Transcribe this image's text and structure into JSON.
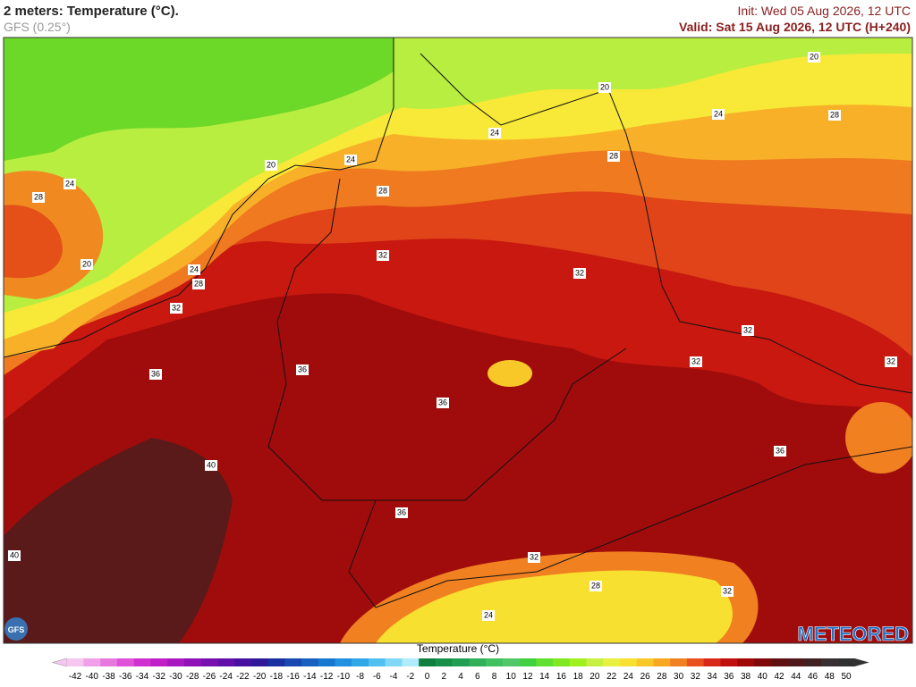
{
  "header": {
    "title": "2 meters: Temperature (°C).",
    "model": "GFS (0.25°)",
    "init": "Init: Wed 05 Aug 2026, 12 UTC",
    "valid": "Valid: Sat 15 Aug 2026, 12 UTC (H+240)"
  },
  "map": {
    "contour_labels": [
      20,
      20,
      20,
      20,
      24,
      24,
      24,
      24,
      24,
      24,
      28,
      28,
      28,
      28,
      28,
      28,
      32,
      32,
      32,
      32,
      32,
      32,
      32,
      32,
      36,
      36,
      36,
      36,
      36,
      40,
      40
    ]
  },
  "logos": {
    "model": "GFS",
    "brand": "METEORED"
  },
  "colorbar": {
    "title": "Temperature (°C)",
    "ticks": [
      -42,
      -40,
      -38,
      -36,
      -34,
      -32,
      -30,
      -28,
      -26,
      -24,
      -22,
      -20,
      -18,
      -16,
      -14,
      -12,
      -10,
      -8,
      -6,
      -4,
      -2,
      0,
      2,
      4,
      6,
      8,
      10,
      12,
      14,
      16,
      18,
      20,
      22,
      24,
      26,
      28,
      30,
      32,
      34,
      36,
      38,
      40,
      42,
      44,
      46,
      48,
      50
    ],
    "colors": [
      "#f5c6f0",
      "#f0a0e8",
      "#e878e0",
      "#e050d8",
      "#d030d0",
      "#c020c8",
      "#a818c0",
      "#9010b8",
      "#7810b0",
      "#6010a8",
      "#4810a0",
      "#301898",
      "#1830a0",
      "#1848b0",
      "#1860c0",
      "#1878d0",
      "#2090e0",
      "#30a8e8",
      "#50c0f0",
      "#80d8f8",
      "#b0ecfc",
      "#108040",
      "#189048",
      "#20a050",
      "#30b058",
      "#40c060",
      "#50c868",
      "#40d040",
      "#60e030",
      "#80e820",
      "#a0f020",
      "#c8f040",
      "#e8f040",
      "#f8e030",
      "#f8c828",
      "#f8a820",
      "#f08020",
      "#e85020",
      "#d82818",
      "#c01010",
      "#a00808",
      "#800808",
      "#601010",
      "#501818",
      "#402020",
      "#383030",
      "#303030"
    ]
  }
}
